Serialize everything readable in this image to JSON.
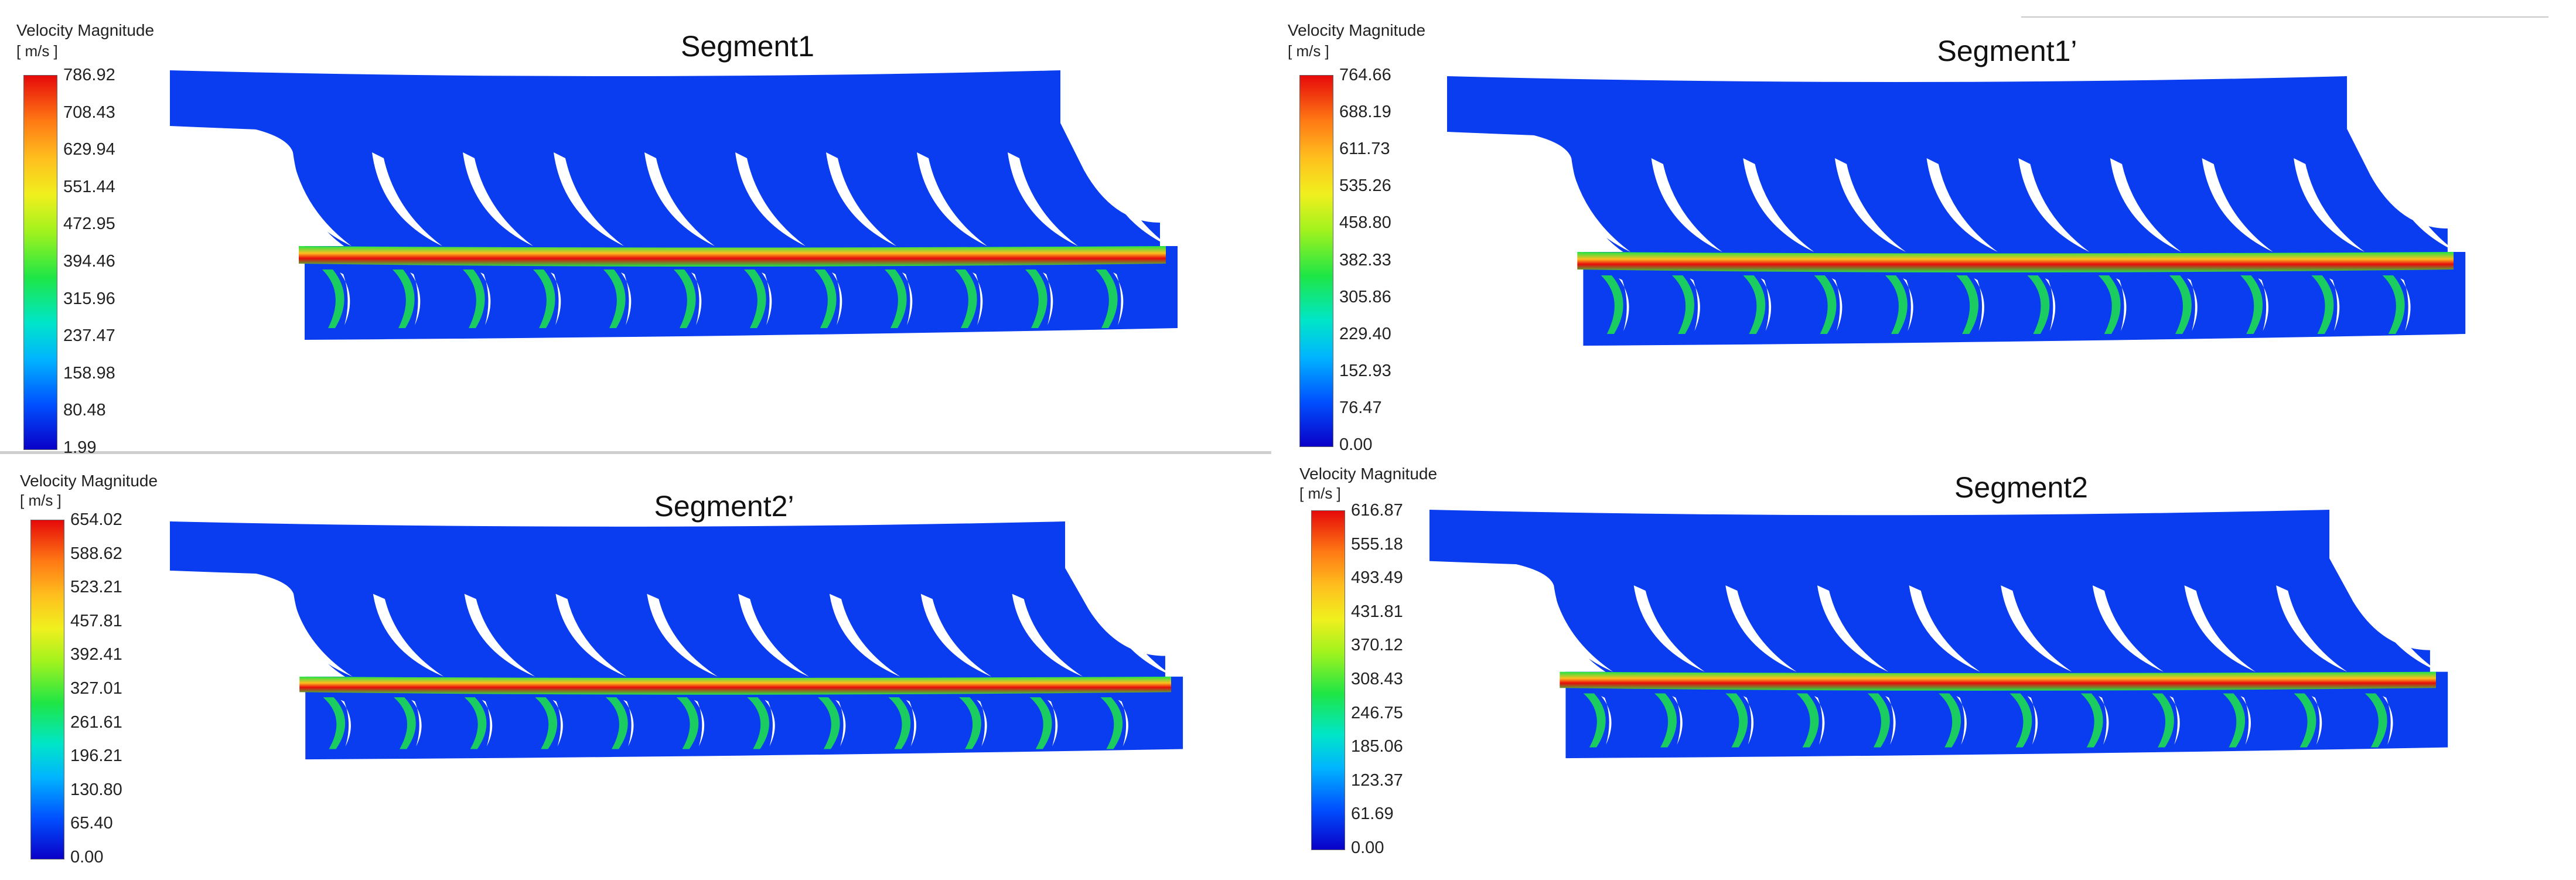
{
  "panels": [
    {
      "title": "Segment1",
      "legend_title": "Velocity Magnitude",
      "legend_unit": "[ m/s ]",
      "ticks": [
        "786.92",
        "708.43",
        "629.94",
        "551.44",
        "472.95",
        "394.46",
        "315.96",
        "237.47",
        "158.98",
        "80.48",
        "1.99"
      ]
    },
    {
      "title": "Segment1’",
      "legend_title": "Velocity Magnitude",
      "legend_unit": "[ m/s ]",
      "ticks": [
        "764.66",
        "688.19",
        "611.73",
        "535.26",
        "458.80",
        "382.33",
        "305.86",
        "229.40",
        "152.93",
        "76.47",
        "0.00"
      ]
    },
    {
      "title": "Segment2’",
      "legend_title": "Velocity Magnitude",
      "legend_unit": "[ m/s ]",
      "ticks": [
        "654.02",
        "588.62",
        "523.21",
        "457.81",
        "392.41",
        "327.01",
        "261.61",
        "196.21",
        "130.80",
        "65.40",
        "0.00"
      ]
    },
    {
      "title": "Segment2",
      "legend_title": "Velocity Magnitude",
      "legend_unit": "[ m/s ]",
      "ticks": [
        "616.87",
        "555.18",
        "493.49",
        "431.81",
        "370.12",
        "308.43",
        "246.75",
        "185.06",
        "123.37",
        "61.69",
        "0.00"
      ]
    }
  ],
  "colors": {
    "field_blue": "#0a3cf0",
    "field_low": "#0a00c8",
    "jet_high": "#e60a0a",
    "jet_mid": "#ffbe1e",
    "jet_green": "#1ee646",
    "vane_gap": "#ffffff"
  }
}
